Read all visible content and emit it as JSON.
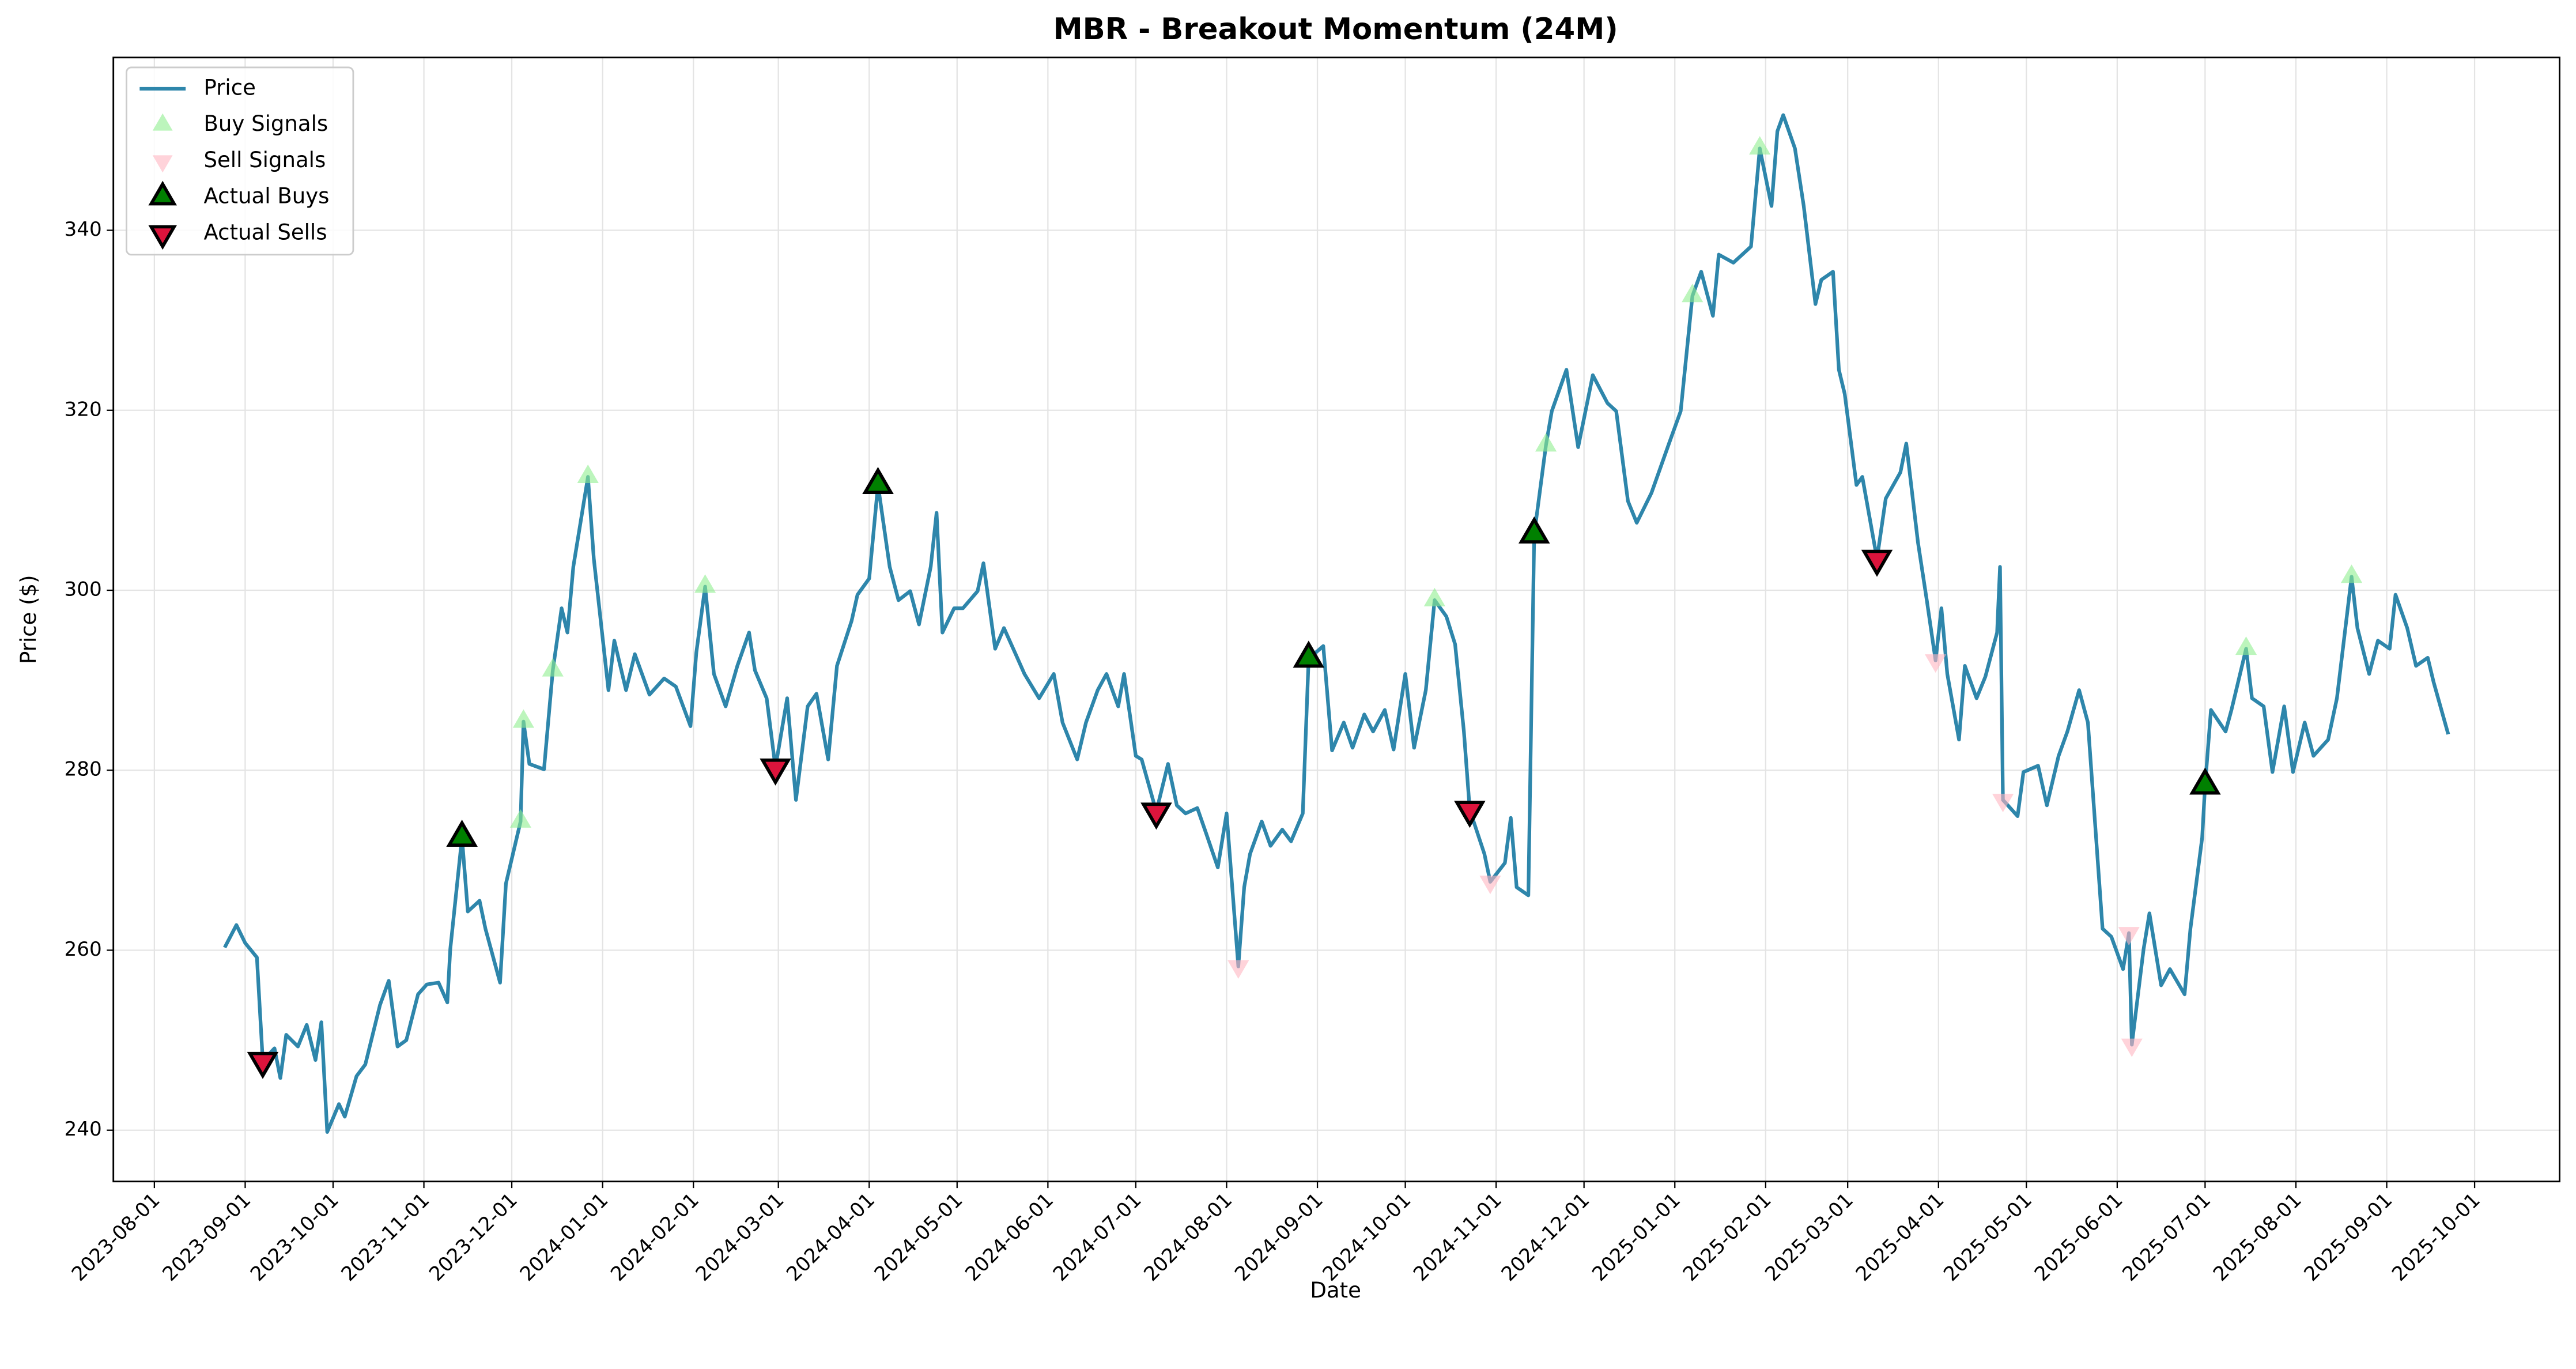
{
  "chart_data": {
    "type": "line",
    "title": "MBR - Breakout Momentum (24M)",
    "x_label": "Date",
    "y_label": "Price ($)",
    "xlim": [
      "2023-07-18",
      "2025-10-30"
    ],
    "xticks": [
      "2023-08-01",
      "2023-09-01",
      "2023-10-01",
      "2023-11-01",
      "2023-12-01",
      "2024-01-01",
      "2024-02-01",
      "2024-03-01",
      "2024-04-01",
      "2024-05-01",
      "2024-06-01",
      "2024-07-01",
      "2024-08-01",
      "2024-09-01",
      "2024-10-01",
      "2024-11-01",
      "2024-12-01",
      "2025-01-01",
      "2025-02-01",
      "2025-03-01",
      "2025-04-01",
      "2025-05-01",
      "2025-06-01",
      "2025-07-01",
      "2025-08-01",
      "2025-09-01",
      "2025-10-01"
    ],
    "ylim": [
      234.3,
      359.2
    ],
    "yticks": [
      240,
      260,
      280,
      300,
      320,
      340
    ],
    "grid": true,
    "legend": "upper left",
    "series": [
      {
        "name": "Price",
        "type": "line",
        "color": "#2E86AB",
        "x": [
          "2023-08-25",
          "2023-08-29",
          "2023-09-01",
          "2023-09-05",
          "2023-09-07",
          "2023-09-11",
          "2023-09-13",
          "2023-09-15",
          "2023-09-19",
          "2023-09-22",
          "2023-09-25",
          "2023-09-27",
          "2023-09-29",
          "2023-10-03",
          "2023-10-05",
          "2023-10-09",
          "2023-10-12",
          "2023-10-17",
          "2023-10-20",
          "2023-10-23",
          "2023-10-26",
          "2023-10-30",
          "2023-11-02",
          "2023-11-06",
          "2023-11-09",
          "2023-11-10",
          "2023-11-14",
          "2023-11-16",
          "2023-11-20",
          "2023-11-22",
          "2023-11-27",
          "2023-11-29",
          "2023-12-04",
          "2023-12-05",
          "2023-12-07",
          "2023-12-12",
          "2023-12-15",
          "2023-12-18",
          "2023-12-20",
          "2023-12-22",
          "2023-12-27",
          "2023-12-29",
          "2024-01-03",
          "2024-01-05",
          "2024-01-09",
          "2024-01-12",
          "2024-01-17",
          "2024-01-22",
          "2024-01-26",
          "2024-01-31",
          "2024-02-02",
          "2024-02-05",
          "2024-02-08",
          "2024-02-12",
          "2024-02-16",
          "2024-02-20",
          "2024-02-22",
          "2024-02-26",
          "2024-02-29",
          "2024-03-04",
          "2024-03-07",
          "2024-03-11",
          "2024-03-14",
          "2024-03-18",
          "2024-03-21",
          "2024-03-26",
          "2024-03-28",
          "2024-04-01",
          "2024-04-04",
          "2024-04-08",
          "2024-04-11",
          "2024-04-15",
          "2024-04-18",
          "2024-04-22",
          "2024-04-24",
          "2024-04-26",
          "2024-04-30",
          "2024-05-03",
          "2024-05-08",
          "2024-05-10",
          "2024-05-14",
          "2024-05-17",
          "2024-05-21",
          "2024-05-24",
          "2024-05-29",
          "2024-06-03",
          "2024-06-06",
          "2024-06-11",
          "2024-06-14",
          "2024-06-18",
          "2024-06-21",
          "2024-06-25",
          "2024-06-27",
          "2024-07-01",
          "2024-07-03",
          "2024-07-08",
          "2024-07-12",
          "2024-07-15",
          "2024-07-18",
          "2024-07-22",
          "2024-07-25",
          "2024-07-29",
          "2024-08-01",
          "2024-08-05",
          "2024-08-07",
          "2024-08-09",
          "2024-08-13",
          "2024-08-16",
          "2024-08-20",
          "2024-08-23",
          "2024-08-27",
          "2024-08-29",
          "2024-09-03",
          "2024-09-06",
          "2024-09-10",
          "2024-09-13",
          "2024-09-17",
          "2024-09-20",
          "2024-09-24",
          "2024-09-27",
          "2024-10-01",
          "2024-10-04",
          "2024-10-08",
          "2024-10-11",
          "2024-10-15",
          "2024-10-18",
          "2024-10-21",
          "2024-10-23",
          "2024-10-28",
          "2024-10-30",
          "2024-11-04",
          "2024-11-06",
          "2024-11-08",
          "2024-11-12",
          "2024-11-14",
          "2024-11-18",
          "2024-11-20",
          "2024-11-25",
          "2024-11-29",
          "2024-12-04",
          "2024-12-09",
          "2024-12-12",
          "2024-12-16",
          "2024-12-19",
          "2024-12-24",
          "2024-12-30",
          "2025-01-03",
          "2025-01-07",
          "2025-01-10",
          "2025-01-14",
          "2025-01-16",
          "2025-01-21",
          "2025-01-24",
          "2025-01-27",
          "2025-01-30",
          "2025-02-03",
          "2025-02-05",
          "2025-02-07",
          "2025-02-11",
          "2025-02-14",
          "2025-02-18",
          "2025-02-20",
          "2025-02-24",
          "2025-02-26",
          "2025-02-28",
          "2025-03-04",
          "2025-03-06",
          "2025-03-11",
          "2025-03-14",
          "2025-03-19",
          "2025-03-21",
          "2025-03-25",
          "2025-03-28",
          "2025-03-31",
          "2025-04-02",
          "2025-04-04",
          "2025-04-08",
          "2025-04-10",
          "2025-04-14",
          "2025-04-17",
          "2025-04-21",
          "2025-04-22",
          "2025-04-23",
          "2025-04-28",
          "2025-04-30",
          "2025-05-05",
          "2025-05-08",
          "2025-05-12",
          "2025-05-15",
          "2025-05-19",
          "2025-05-22",
          "2025-05-27",
          "2025-05-30",
          "2025-06-03",
          "2025-06-05",
          "2025-06-06",
          "2025-06-10",
          "2025-06-12",
          "2025-06-16",
          "2025-06-19",
          "2025-06-24",
          "2025-06-26",
          "2025-06-30",
          "2025-07-01",
          "2025-07-03",
          "2025-07-08",
          "2025-07-10",
          "2025-07-15",
          "2025-07-17",
          "2025-07-21",
          "2025-07-24",
          "2025-07-28",
          "2025-07-31",
          "2025-08-04",
          "2025-08-07",
          "2025-08-12",
          "2025-08-15",
          "2025-08-20",
          "2025-08-22",
          "2025-08-26",
          "2025-08-29",
          "2025-09-02",
          "2025-09-04",
          "2025-09-08",
          "2025-09-11",
          "2025-09-15",
          "2025-09-17",
          "2025-09-22"
        ],
        "values": [
          260.3,
          262.8,
          260.8,
          259.2,
          247.7,
          249.1,
          245.8,
          250.6,
          249.3,
          251.7,
          247.8,
          252.0,
          239.8,
          242.9,
          241.5,
          246.0,
          247.3,
          253.9,
          256.6,
          249.3,
          250.0,
          255.1,
          256.2,
          256.4,
          254.2,
          260.1,
          272.5,
          264.3,
          265.5,
          262.4,
          256.4,
          267.4,
          274.3,
          285.4,
          280.7,
          280.1,
          291.1,
          298.0,
          295.3,
          302.6,
          312.6,
          303.5,
          288.9,
          294.4,
          288.9,
          292.9,
          288.4,
          290.2,
          289.3,
          284.9,
          293.1,
          300.4,
          290.7,
          287.1,
          291.6,
          295.3,
          291.1,
          288.0,
          280.3,
          288.0,
          276.7,
          287.1,
          288.5,
          281.2,
          291.6,
          296.6,
          299.5,
          301.3,
          311.7,
          302.6,
          298.9,
          299.9,
          296.2,
          302.6,
          308.6,
          295.3,
          298.0,
          298.0,
          299.9,
          303.0,
          293.5,
          295.8,
          292.9,
          290.7,
          288.0,
          290.7,
          285.3,
          281.2,
          285.3,
          288.9,
          290.7,
          287.1,
          290.7,
          281.6,
          281.2,
          275.4,
          280.7,
          276.1,
          275.2,
          275.8,
          273.0,
          269.2,
          275.2,
          258.2,
          267.0,
          270.7,
          274.3,
          271.6,
          273.4,
          272.1,
          275.2,
          292.4,
          293.8,
          282.2,
          285.3,
          282.5,
          286.2,
          284.3,
          286.7,
          282.3,
          290.7,
          282.5,
          288.9,
          298.9,
          297.1,
          294.0,
          284.3,
          275.6,
          270.7,
          267.6,
          269.7,
          274.7,
          267.0,
          266.1,
          306.2,
          316.1,
          319.9,
          324.5,
          315.9,
          323.9,
          320.8,
          319.9,
          309.9,
          307.5,
          310.8,
          316.3,
          319.9,
          332.7,
          335.4,
          330.5,
          337.3,
          336.4,
          337.3,
          338.2,
          349.1,
          342.7,
          351.0,
          352.8,
          349.1,
          342.7,
          331.8,
          334.5,
          335.4,
          324.5,
          321.8,
          311.7,
          312.6,
          303.5,
          310.2,
          313.1,
          316.3,
          305.3,
          298.9,
          292.2,
          298.0,
          290.7,
          283.4,
          291.6,
          288.0,
          290.4,
          295.3,
          302.6,
          276.7,
          274.9,
          279.8,
          280.5,
          276.1,
          281.6,
          284.3,
          288.9,
          285.3,
          262.4,
          261.5,
          257.9,
          261.9,
          249.5,
          260.1,
          264.1,
          256.1,
          257.9,
          255.1,
          262.4,
          272.5,
          278.3,
          286.7,
          284.3,
          286.7,
          293.5,
          288.0,
          287.1,
          279.8,
          287.1,
          279.8,
          285.3,
          281.6,
          283.4,
          288.0,
          301.5,
          295.8,
          290.7,
          294.4,
          293.5,
          299.5,
          295.8,
          291.6,
          292.5,
          289.8,
          284.0
        ]
      },
      {
        "name": "Buy Signals",
        "type": "scatter",
        "marker": "^",
        "color": "#90ee90",
        "alpha": 0.6,
        "x": [
          "2023-11-14",
          "2023-12-04",
          "2023-12-05",
          "2023-12-15",
          "2023-12-27",
          "2024-02-05",
          "2024-04-04",
          "2024-08-29",
          "2024-10-11",
          "2024-11-18",
          "2025-01-07",
          "2025-01-30",
          "2025-07-01",
          "2025-07-15",
          "2025-08-20"
        ],
        "values": [
          272.5,
          274.3,
          285.4,
          291.1,
          312.6,
          300.4,
          311.7,
          292.4,
          298.9,
          316.1,
          332.7,
          349.1,
          278.3,
          293.5,
          301.5
        ]
      },
      {
        "name": "Sell Signals",
        "type": "scatter",
        "marker": "v",
        "color": "#ffb6c1",
        "alpha": 0.6,
        "x": [
          "2023-09-07",
          "2024-02-29",
          "2024-07-08",
          "2024-08-05",
          "2024-10-23",
          "2024-10-30",
          "2025-03-11",
          "2025-03-31",
          "2025-04-23",
          "2025-06-05",
          "2025-06-06"
        ],
        "values": [
          247.7,
          280.3,
          275.4,
          258.2,
          275.6,
          267.6,
          303.5,
          292.2,
          276.7,
          261.9,
          249.5
        ]
      },
      {
        "name": "Actual Buys",
        "type": "scatter",
        "marker": "^",
        "color": "#008000",
        "alpha": 1,
        "edgecolor": "#000000",
        "x": [
          "2023-11-14",
          "2024-04-04",
          "2024-08-29",
          "2024-11-14",
          "2025-07-01"
        ],
        "values": [
          272.5,
          311.7,
          292.4,
          306.2,
          278.3
        ]
      },
      {
        "name": "Actual Sells",
        "type": "scatter",
        "marker": "v",
        "color": "#dc143c",
        "alpha": 1,
        "edgecolor": "#000000",
        "x": [
          "2023-09-07",
          "2024-02-29",
          "2024-07-08",
          "2024-10-23",
          "2025-03-11"
        ],
        "values": [
          247.7,
          280.3,
          275.4,
          275.6,
          303.5
        ]
      }
    ]
  }
}
